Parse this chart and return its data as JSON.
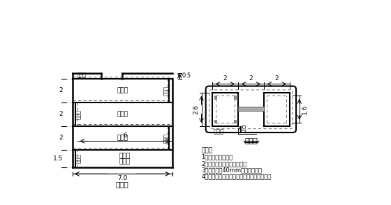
{
  "bg_color": "#ffffff",
  "title_left": "立面图",
  "title_right": "平面图",
  "notes_title": "说明：",
  "notes": [
    "1、本图单位为米。",
    "2、本图为水流向循环示意图",
    "3、降温管用40mm的钢管加工。",
    "4、水流方向自墩底进水口上墩顶循环进水。"
  ]
}
